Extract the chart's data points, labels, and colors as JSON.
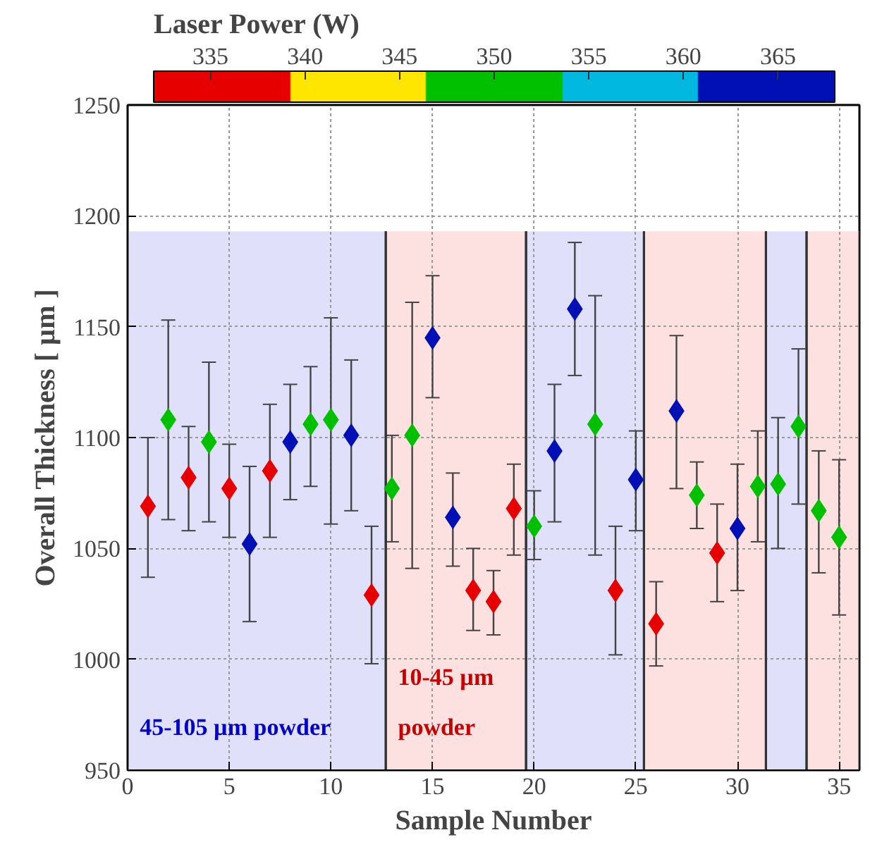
{
  "chart_data": {
    "type": "scatter",
    "xlabel": "Sample Number",
    "ylabel": "Overall Thickness [ µm ]",
    "clabel": "Laser Power (W)",
    "series": [
      {
        "color": "#e60000",
        "x": [
          1,
          3,
          5,
          7,
          12,
          17,
          18,
          19,
          24,
          26,
          29
        ],
        "values": [
          1069,
          1082,
          1077,
          1085,
          1029,
          1031,
          1026,
          1068,
          1031,
          1016,
          1048
        ],
        "errors": [
          [
            1037,
            1100
          ],
          [
            1058,
            1105
          ],
          [
            1055,
            1097
          ],
          [
            1055,
            1115
          ],
          [
            998,
            1060
          ],
          [
            1013,
            1050
          ],
          [
            1011,
            1040
          ],
          [
            1047,
            1088
          ],
          [
            1002,
            1060
          ],
          [
            997,
            1035
          ],
          [
            1026,
            1070
          ]
        ]
      },
      {
        "color": "#00c000",
        "x": [
          2,
          4,
          9,
          10,
          13,
          14,
          20,
          23,
          28,
          31,
          32,
          33,
          34,
          35
        ],
        "values": [
          1108,
          1098,
          1106,
          1108,
          1077,
          1101,
          1060,
          1106,
          1074,
          1078,
          1079,
          1105,
          1067,
          1055
        ],
        "errors": [
          [
            1063,
            1153
          ],
          [
            1062,
            1134
          ],
          [
            1078,
            1132
          ],
          [
            1061,
            1154
          ],
          [
            1053,
            1101
          ],
          [
            1041,
            1161
          ],
          [
            1045,
            1076
          ],
          [
            1047,
            1164
          ],
          [
            1059,
            1089
          ],
          [
            1053,
            1103
          ],
          [
            1050,
            1109
          ],
          [
            1070,
            1140
          ],
          [
            1039,
            1094
          ],
          [
            1020,
            1090
          ]
        ]
      },
      {
        "color": "#0010b4",
        "x": [
          6,
          8,
          11,
          15,
          16,
          21,
          22,
          25,
          27,
          30
        ],
        "values": [
          1052,
          1098,
          1101,
          1145,
          1064,
          1094,
          1158,
          1081,
          1112,
          1059
        ],
        "errors": [
          [
            1017,
            1087
          ],
          [
            1072,
            1124
          ],
          [
            1067,
            1135
          ],
          [
            1118,
            1173
          ],
          [
            1042,
            1084
          ],
          [
            1062,
            1124
          ],
          [
            1128,
            1188
          ],
          [
            1058,
            1103
          ],
          [
            1077,
            1146
          ],
          [
            1031,
            1088
          ]
        ]
      }
    ],
    "clim": [
      332,
      368
    ],
    "cticks": [
      335,
      340,
      345,
      350,
      355,
      360,
      365
    ],
    "marker": "diamond",
    "xlim": [
      0,
      36
    ],
    "xticks": [
      0,
      5,
      10,
      15,
      20,
      25,
      30,
      35
    ],
    "ylim": [
      950,
      1250
    ],
    "yticks": [
      950,
      1000,
      1050,
      1100,
      1150,
      1200,
      1250
    ],
    "grid": true,
    "bands": [
      {
        "axis": "x",
        "from": 0,
        "to": 12.7,
        "label": "45-105 µm powder",
        "color": "#e0e0fa"
      },
      {
        "axis": "x",
        "from": 12.7,
        "to": 19.6,
        "label": "10-45 µm\npowder",
        "color": "#fde0e0"
      },
      {
        "axis": "x",
        "from": 19.6,
        "to": 25.4,
        "color": "#e0e0fa"
      },
      {
        "axis": "x",
        "from": 25.4,
        "to": 31.4,
        "color": "#fde0e0"
      },
      {
        "axis": "x",
        "from": 31.4,
        "to": 33.4,
        "color": "#e0e0fa"
      },
      {
        "axis": "x",
        "from": 33.4,
        "to": 36,
        "color": "#fde0e0"
      }
    ]
  }
}
